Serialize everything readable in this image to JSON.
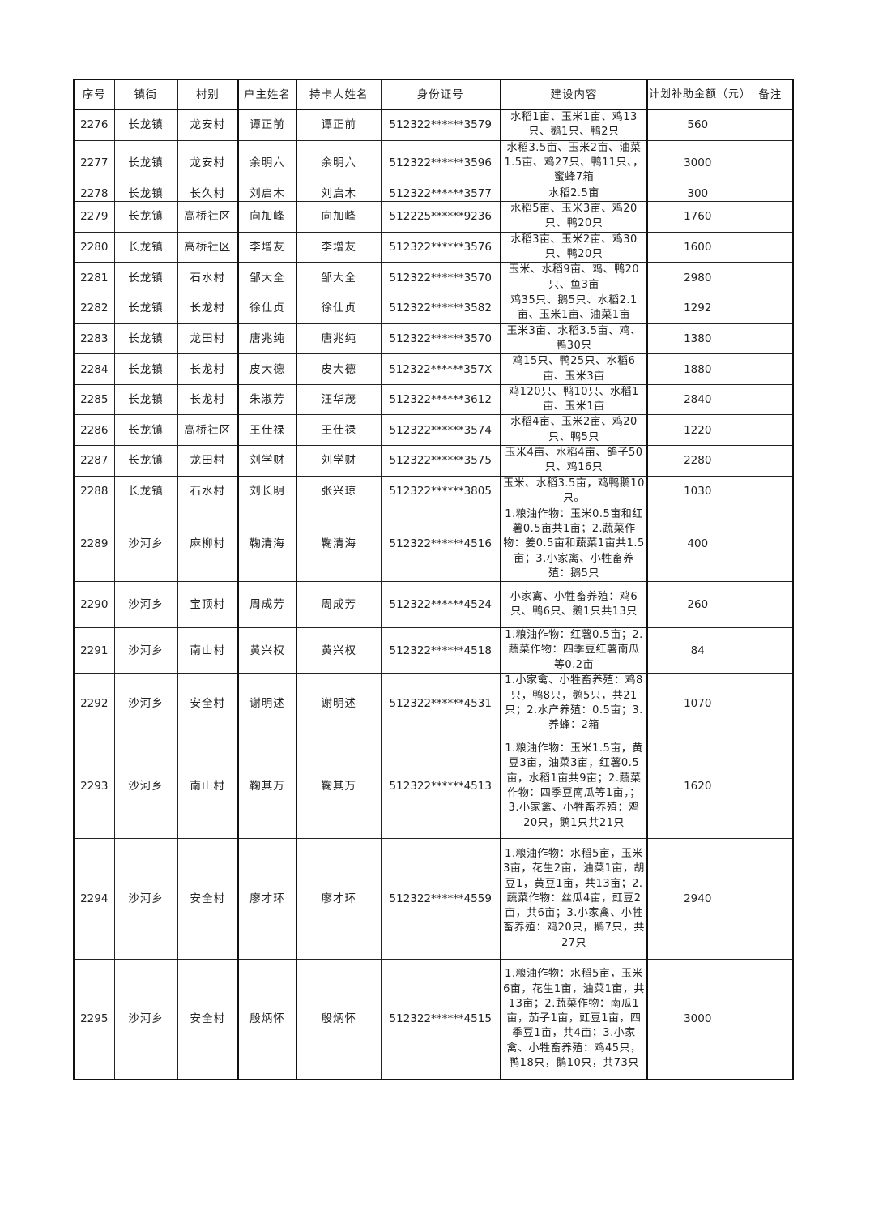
{
  "table": {
    "headers": [
      "序号",
      "镇街",
      "村别",
      "户主姓名",
      "持卡人姓名",
      "身份证号",
      "建设内容",
      "计划补助金额（元）",
      "备注"
    ],
    "rows": [
      [
        "2276",
        "长龙镇",
        "龙安村",
        "谭正前",
        "谭正前",
        "512322******3579",
        "水稻1亩、玉米1亩、鸡13只、鹅1只、鸭2只",
        "560",
        ""
      ],
      [
        "2277",
        "长龙镇",
        "龙安村",
        "余明六",
        "余明六",
        "512322******3596",
        "水稻3.5亩、玉米2亩、油菜1.5亩、鸡27只、鸭11只、，蜜蜂7箱",
        "3000",
        ""
      ],
      [
        "2278",
        "长龙镇",
        "长久村",
        "刘启木",
        "刘启木",
        "512322******3577",
        "水稻2.5亩",
        "300",
        ""
      ],
      [
        "2279",
        "长龙镇",
        "高桥社区",
        "向加峰",
        "向加峰",
        "512225******9236",
        "水稻5亩、玉米3亩、鸡20只、鸭20只",
        "1760",
        ""
      ],
      [
        "2280",
        "长龙镇",
        "高桥社区",
        "李增友",
        "李增友",
        "512322******3576",
        "水稻3亩、玉米2亩、鸡30只、鸭20只",
        "1600",
        ""
      ],
      [
        "2281",
        "长龙镇",
        "石水村",
        "邹大全",
        "邹大全",
        "512322******3570",
        "玉米、水稻9亩、鸡、鸭20只、鱼3亩",
        "2980",
        ""
      ],
      [
        "2282",
        "长龙镇",
        "长龙村",
        "徐仕贞",
        "徐仕贞",
        "512322******3582",
        "鸡35只、鹅5只、水稻2.1亩、玉米1亩、油菜1亩",
        "1292",
        ""
      ],
      [
        "2283",
        "长龙镇",
        "龙田村",
        "唐兆纯",
        "唐兆纯",
        "512322******3570",
        "玉米3亩、水稻3.5亩、鸡、鸭30只",
        "1380",
        ""
      ],
      [
        "2284",
        "长龙镇",
        "长龙村",
        "皮大德",
        "皮大德",
        "512322******357X",
        "鸡15只、鸭25只、水稻6亩、玉米3亩",
        "1880",
        ""
      ],
      [
        "2285",
        "长龙镇",
        "长龙村",
        "朱淑芳",
        "汪华茂",
        "512322******3612",
        "鸡120只、鸭10只、水稻1亩、玉米1亩",
        "2840",
        ""
      ],
      [
        "2286",
        "长龙镇",
        "高桥社区",
        "王仕禄",
        "王仕禄",
        "512322******3574",
        "水稻4亩、玉米2亩、鸡20只、鸭5只",
        "1220",
        ""
      ],
      [
        "2287",
        "长龙镇",
        "龙田村",
        "刘学财",
        "刘学财",
        "512322******3575",
        "玉米4亩、水稻4亩、鸽子50只、鸡16只",
        "2280",
        ""
      ],
      [
        "2288",
        "长龙镇",
        "石水村",
        "刘长明",
        "张兴琼",
        "512322******3805",
        "玉米、水稻3.5亩，鸡鸭鹅10只。",
        "1030",
        ""
      ],
      [
        "2289",
        "沙河乡",
        "麻柳村",
        "鞠清海",
        "鞠清海",
        "512322******4516",
        "1.粮油作物：玉米0.5亩和红薯0.5亩共1亩；2.蔬菜作物：姜0.5亩和蔬菜1亩共1.5亩；3.小家禽、小牲畜养殖：鹅5只",
        "400",
        ""
      ],
      [
        "2290",
        "沙河乡",
        "宝顶村",
        "周成芳",
        "周成芳",
        "512322******4524",
        "小家禽、小牲畜养殖：鸡6只、鸭6只、鹅1只共13只",
        "260",
        ""
      ],
      [
        "2291",
        "沙河乡",
        "南山村",
        "黄兴权",
        "黄兴权",
        "512322******4518",
        "1.粮油作物：红薯0.5亩；2.蔬菜作物：四季豆红薯南瓜等0.2亩",
        "84",
        ""
      ],
      [
        "2292",
        "沙河乡",
        "安全村",
        "谢明述",
        "谢明述",
        "512322******4531",
        "1.小家禽、小牲畜养殖：鸡8只，鸭8只，鹅5只，共21只；2.水产养殖：0.5亩；3.养蜂：2箱",
        "1070",
        ""
      ],
      [
        "2293",
        "沙河乡",
        "南山村",
        "鞠其万",
        "鞠其万",
        "512322******4513",
        "1.粮油作物：玉米1.5亩，黄豆3亩，油菜3亩，红薯0.5亩，水稻1亩共9亩；2.蔬菜作物：四季豆南瓜等1亩，；3.小家禽、小牲畜养殖：鸡20只，鹅1只共21只",
        "1620",
        ""
      ],
      [
        "2294",
        "沙河乡",
        "安全村",
        "廖才环",
        "廖才环",
        "512322******4559",
        "1.粮油作物：水稻5亩，玉米3亩，花生2亩，油菜1亩，胡豆1，黄豆1亩，共13亩；2.蔬菜作物：丝瓜4亩，豇豆2亩，共6亩；3.小家禽、小牲畜养殖：鸡20只，鹅7只，共27只",
        "2940",
        ""
      ],
      [
        "2295",
        "沙河乡",
        "安全村",
        "殷炳怀",
        "殷炳怀",
        "512322******4515",
        "1.粮油作物：水稻5亩，玉米6亩，花生1亩，油菜1亩，共13亩；2.蔬菜作物：南瓜1亩，茄子1亩，豇豆1亩，四季豆1亩，共4亩；3.小家禽、小牲畜养殖：鸡45只，鸭18只，鹅10只，共73只",
        "3000",
        ""
      ]
    ]
  }
}
